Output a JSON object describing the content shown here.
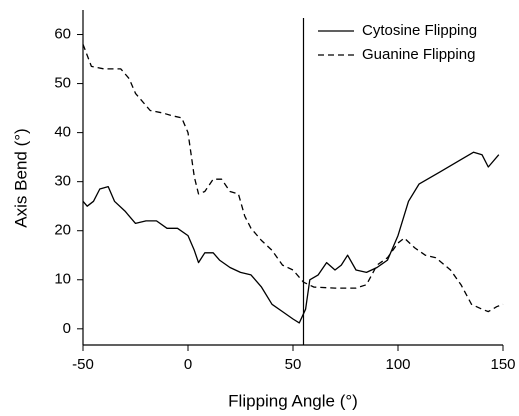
{
  "chart_data": {
    "type": "line",
    "x_label": "Flipping Angle (°)",
    "y_label": "Axis Bend (°)",
    "xlim": [
      -50,
      150
    ],
    "ylim": [
      -3.3,
      65
    ],
    "xticks": [
      -50,
      0,
      50,
      100,
      150
    ],
    "yticks": [
      0,
      10,
      20,
      30,
      40,
      50,
      60
    ],
    "vline": 55,
    "legend": "upper right",
    "series": [
      {
        "name": "Cytosine Flipping",
        "color": "#000000",
        "linestyle": "solid",
        "x": [
          -50,
          -48,
          -45,
          -42,
          -38,
          -35,
          -30,
          -25,
          -20,
          -15,
          -10,
          -5,
          0,
          3,
          5,
          8,
          12,
          15,
          20,
          25,
          30,
          35,
          40,
          45,
          50,
          53,
          56,
          58,
          62,
          66,
          70,
          73,
          76,
          80,
          85,
          90,
          95,
          100,
          105,
          110,
          120,
          130,
          136,
          140,
          143,
          148
        ],
        "values": [
          26,
          25,
          26,
          28.5,
          29,
          26,
          24,
          21.5,
          22,
          22,
          20.5,
          20.5,
          19,
          16,
          13.5,
          15.5,
          15.5,
          14,
          12.5,
          11.5,
          11,
          8.5,
          5,
          3.5,
          2,
          1.2,
          4,
          10,
          11,
          13.5,
          12,
          13,
          15,
          12,
          11.5,
          12.5,
          14,
          19,
          26,
          29.5,
          32,
          34.5,
          36,
          35.5,
          33,
          35.5
        ]
      },
      {
        "name": "Guanine Flipping",
        "color": "#000000",
        "linestyle": "dashed",
        "x": [
          -50,
          -46,
          -40,
          -32,
          -28,
          -25,
          -18,
          -12,
          -8,
          -3,
          0,
          3,
          5,
          8,
          12,
          16,
          20,
          24,
          27,
          30,
          35,
          40,
          45,
          50,
          55,
          60,
          70,
          80,
          85,
          90,
          95,
          100,
          103,
          108,
          113,
          118,
          125,
          130,
          135,
          140,
          143,
          147,
          150
        ],
        "values": [
          58,
          53.5,
          53,
          53,
          51,
          48,
          44.5,
          44,
          43.5,
          43,
          40,
          31,
          27.5,
          28,
          30.5,
          30.5,
          28,
          27.5,
          23,
          20.5,
          18,
          16,
          13,
          12,
          9.5,
          8.5,
          8.3,
          8.3,
          9,
          13,
          14.5,
          17.5,
          18.5,
          16.5,
          15,
          14.5,
          12,
          9,
          5,
          4,
          3.5,
          4.5,
          5
        ]
      }
    ]
  }
}
